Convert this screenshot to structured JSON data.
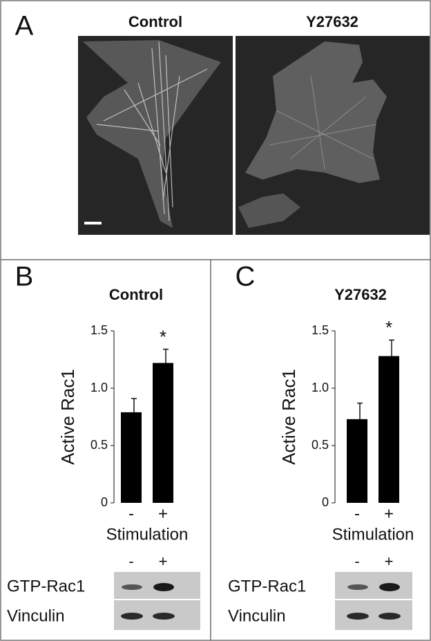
{
  "panel_a": {
    "label": "A",
    "images": [
      {
        "title": "Control"
      },
      {
        "title": "Y27632"
      }
    ]
  },
  "chart_data": [
    {
      "type": "bar",
      "panel": "B",
      "title": "Control",
      "ylabel": "Active Rac1",
      "xlabel": "Stimulation",
      "categories": [
        "-",
        "+"
      ],
      "values": [
        0.79,
        1.22
      ],
      "errors": [
        0.12,
        0.12
      ],
      "color": "#000000",
      "annotation": "*",
      "ylim": [
        0,
        1.5
      ],
      "yticks": [
        0,
        0.5,
        {
          "value": 1,
          "label": "1.0"
        },
        1.5
      ],
      "blot": {
        "rows": [
          "GTP-Rac1",
          "Vinculin"
        ]
      }
    },
    {
      "type": "bar",
      "panel": "C",
      "title": "Y27632",
      "ylabel": "Active Rac1",
      "xlabel": "Stimulation",
      "categories": [
        "-",
        "+"
      ],
      "values": [
        0.73,
        1.28
      ],
      "errors": [
        0.14,
        0.14
      ],
      "color": "#000000",
      "annotation": "*",
      "ylim": [
        0,
        1.5
      ],
      "yticks": [
        0,
        0.5,
        {
          "value": 1,
          "label": "1.0"
        },
        1.5
      ],
      "blot": {
        "rows": [
          "GTP-Rac1",
          "Vinculin"
        ]
      }
    }
  ]
}
